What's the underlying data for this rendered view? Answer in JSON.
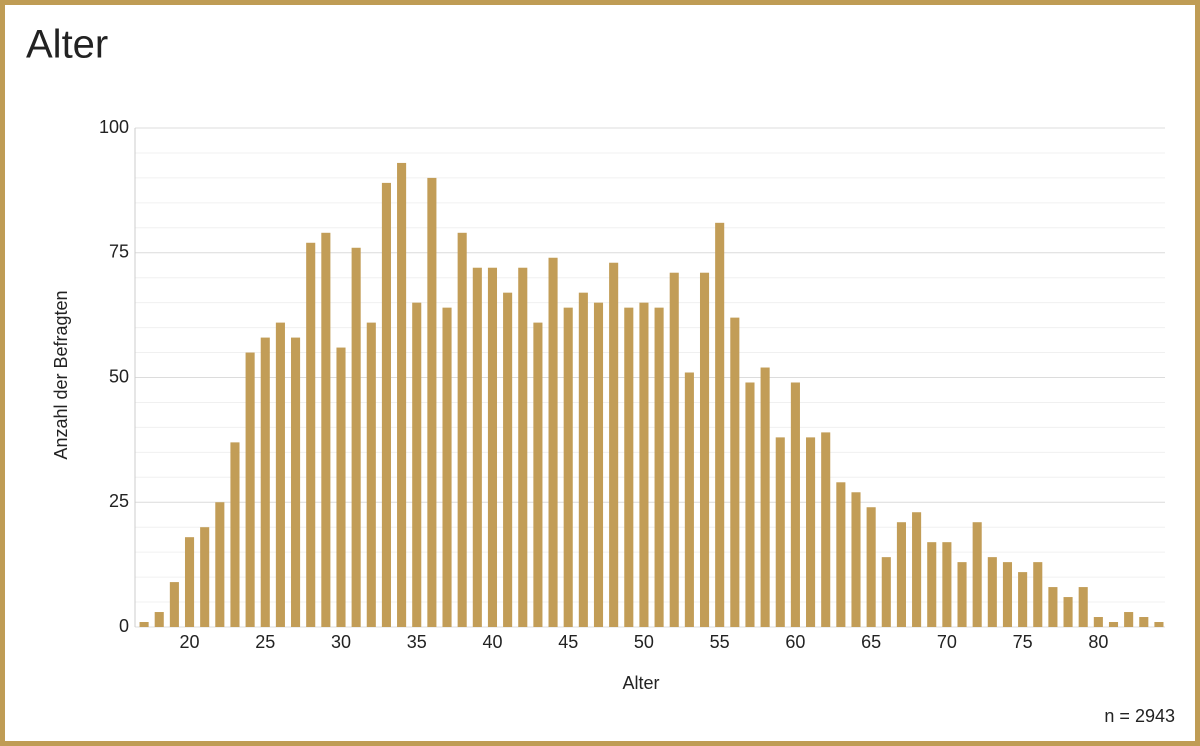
{
  "chart_data": {
    "type": "bar",
    "title": "Alter",
    "x_label": "Alter",
    "y_label": "Anzahl der Befragten",
    "annotation": "n = 2943",
    "x": [
      17,
      18,
      19,
      20,
      21,
      22,
      23,
      24,
      25,
      26,
      27,
      28,
      29,
      30,
      31,
      32,
      33,
      34,
      35,
      36,
      37,
      38,
      39,
      40,
      41,
      42,
      43,
      44,
      45,
      46,
      47,
      48,
      49,
      50,
      51,
      52,
      53,
      54,
      55,
      56,
      57,
      58,
      59,
      60,
      61,
      62,
      63,
      64,
      65,
      66,
      67,
      68,
      69,
      70,
      71,
      72,
      73,
      74,
      75,
      76,
      77,
      78,
      79,
      80,
      81,
      82,
      83,
      84
    ],
    "values": [
      1,
      3,
      9,
      18,
      20,
      25,
      37,
      55,
      58,
      61,
      58,
      77,
      79,
      56,
      76,
      61,
      89,
      93,
      65,
      90,
      64,
      79,
      72,
      72,
      67,
      72,
      61,
      74,
      64,
      67,
      65,
      73,
      64,
      65,
      64,
      71,
      51,
      71,
      81,
      62,
      49,
      52,
      38,
      49,
      38,
      39,
      29,
      27,
      24,
      14,
      21,
      23,
      17,
      17,
      13,
      21,
      14,
      13,
      11,
      13,
      8,
      6,
      8,
      2,
      1,
      3,
      2,
      1
    ],
    "color": "#c29d57",
    "xlim": [
      16.4,
      84.4
    ],
    "xticks": [
      20,
      25,
      30,
      35,
      40,
      45,
      50,
      55,
      60,
      65,
      70,
      75,
      80
    ],
    "ylim": [
      0,
      100
    ],
    "yticks": [
      0,
      25,
      50,
      75,
      100
    ],
    "y_minor_ticks": [
      5,
      10,
      15,
      20,
      30,
      35,
      40,
      45,
      55,
      60,
      65,
      70,
      80,
      85,
      90,
      95
    ],
    "grid": true
  }
}
